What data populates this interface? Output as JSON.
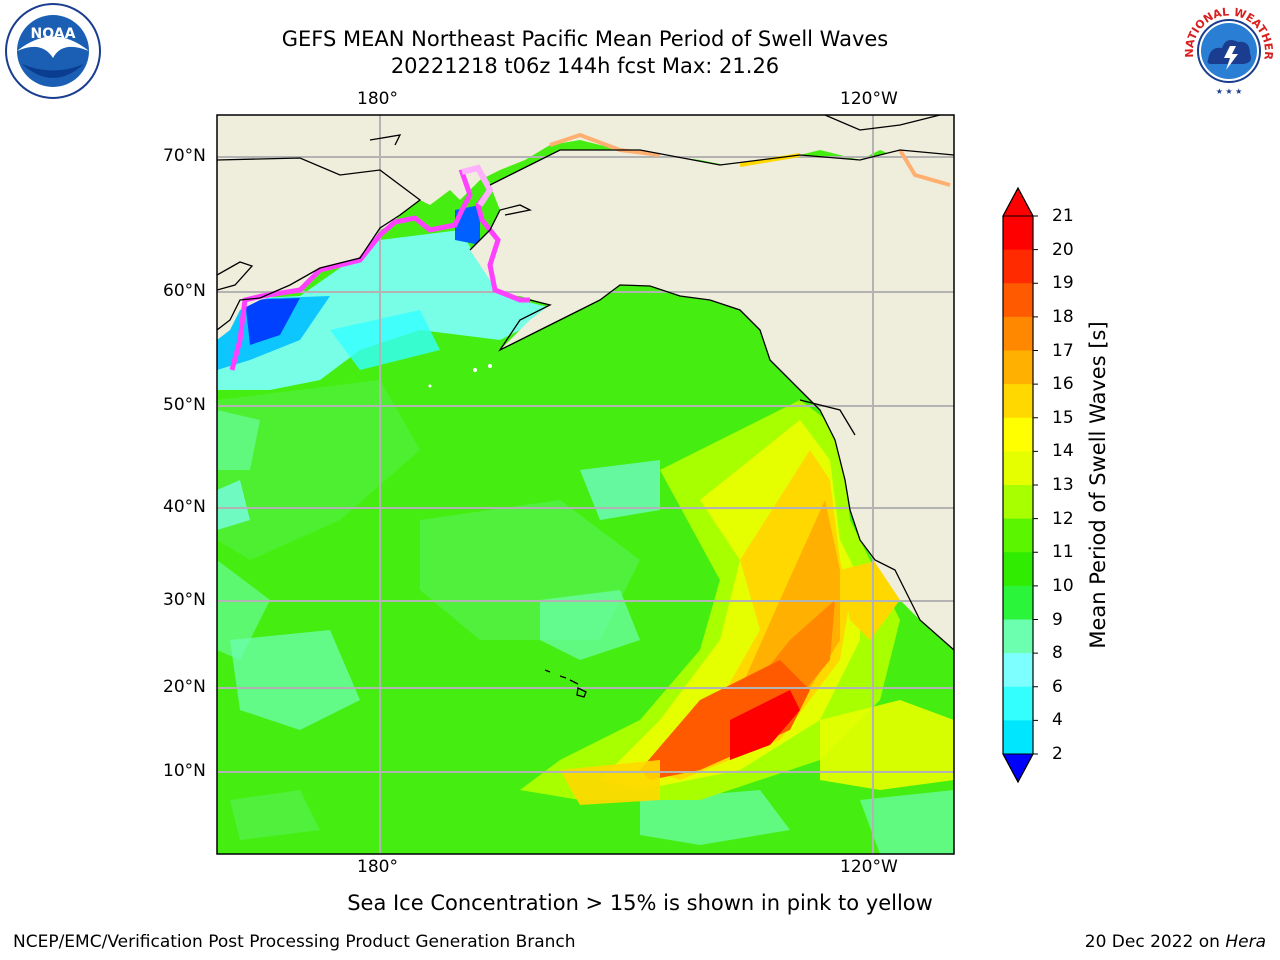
{
  "title_line1": "GEFS MEAN Northeast Pacific Mean Period of Swell Waves",
  "title_line2": "20221218 t06z 144h fcst   Max: 21.26",
  "top_lon_labels": [
    "180°",
    "120°W"
  ],
  "bottom_lon_labels": [
    "180°",
    "120°W"
  ],
  "lat_labels": [
    "70°N",
    "60°N",
    "50°N",
    "40°N",
    "30°N",
    "20°N",
    "10°N"
  ],
  "colorbar": {
    "label": "Mean Period of Swell Waves [s]",
    "ticks": [
      "21",
      "20",
      "19",
      "18",
      "17",
      "16",
      "15",
      "14",
      "13",
      "12",
      "11",
      "10",
      "9",
      "8",
      "6",
      "4",
      "2"
    ],
    "colors": [
      "#ff0000",
      "#ff2a00",
      "#ff5a00",
      "#ff8800",
      "#ffb000",
      "#ffd800",
      "#ffff00",
      "#e6ff00",
      "#a8ff00",
      "#5cf500",
      "#30ec00",
      "#2af53a",
      "#6cffb0",
      "#7dffff",
      "#33ffff",
      "#00e6ff",
      "#00c0ff",
      "#0060ff"
    ],
    "extend_max_color": "#ff0000",
    "extend_min_color": "#0000ff"
  },
  "caption": "Sea Ice Concentration > 15% is shown in pink to yellow",
  "credit": "NCEP/EMC/Verification Post Processing Product Generation Branch",
  "date_prefix": "20 Dec 2022 on ",
  "date_host": "Hera",
  "logos": {
    "noaa_text": "NOAA",
    "nws_text": "NATIONAL WEATHER SERVICE"
  },
  "map_colors": {
    "land": "#efeddc",
    "ocean_base": "#45ee10",
    "coast": "#000000",
    "grid": "#b3b3b3"
  }
}
